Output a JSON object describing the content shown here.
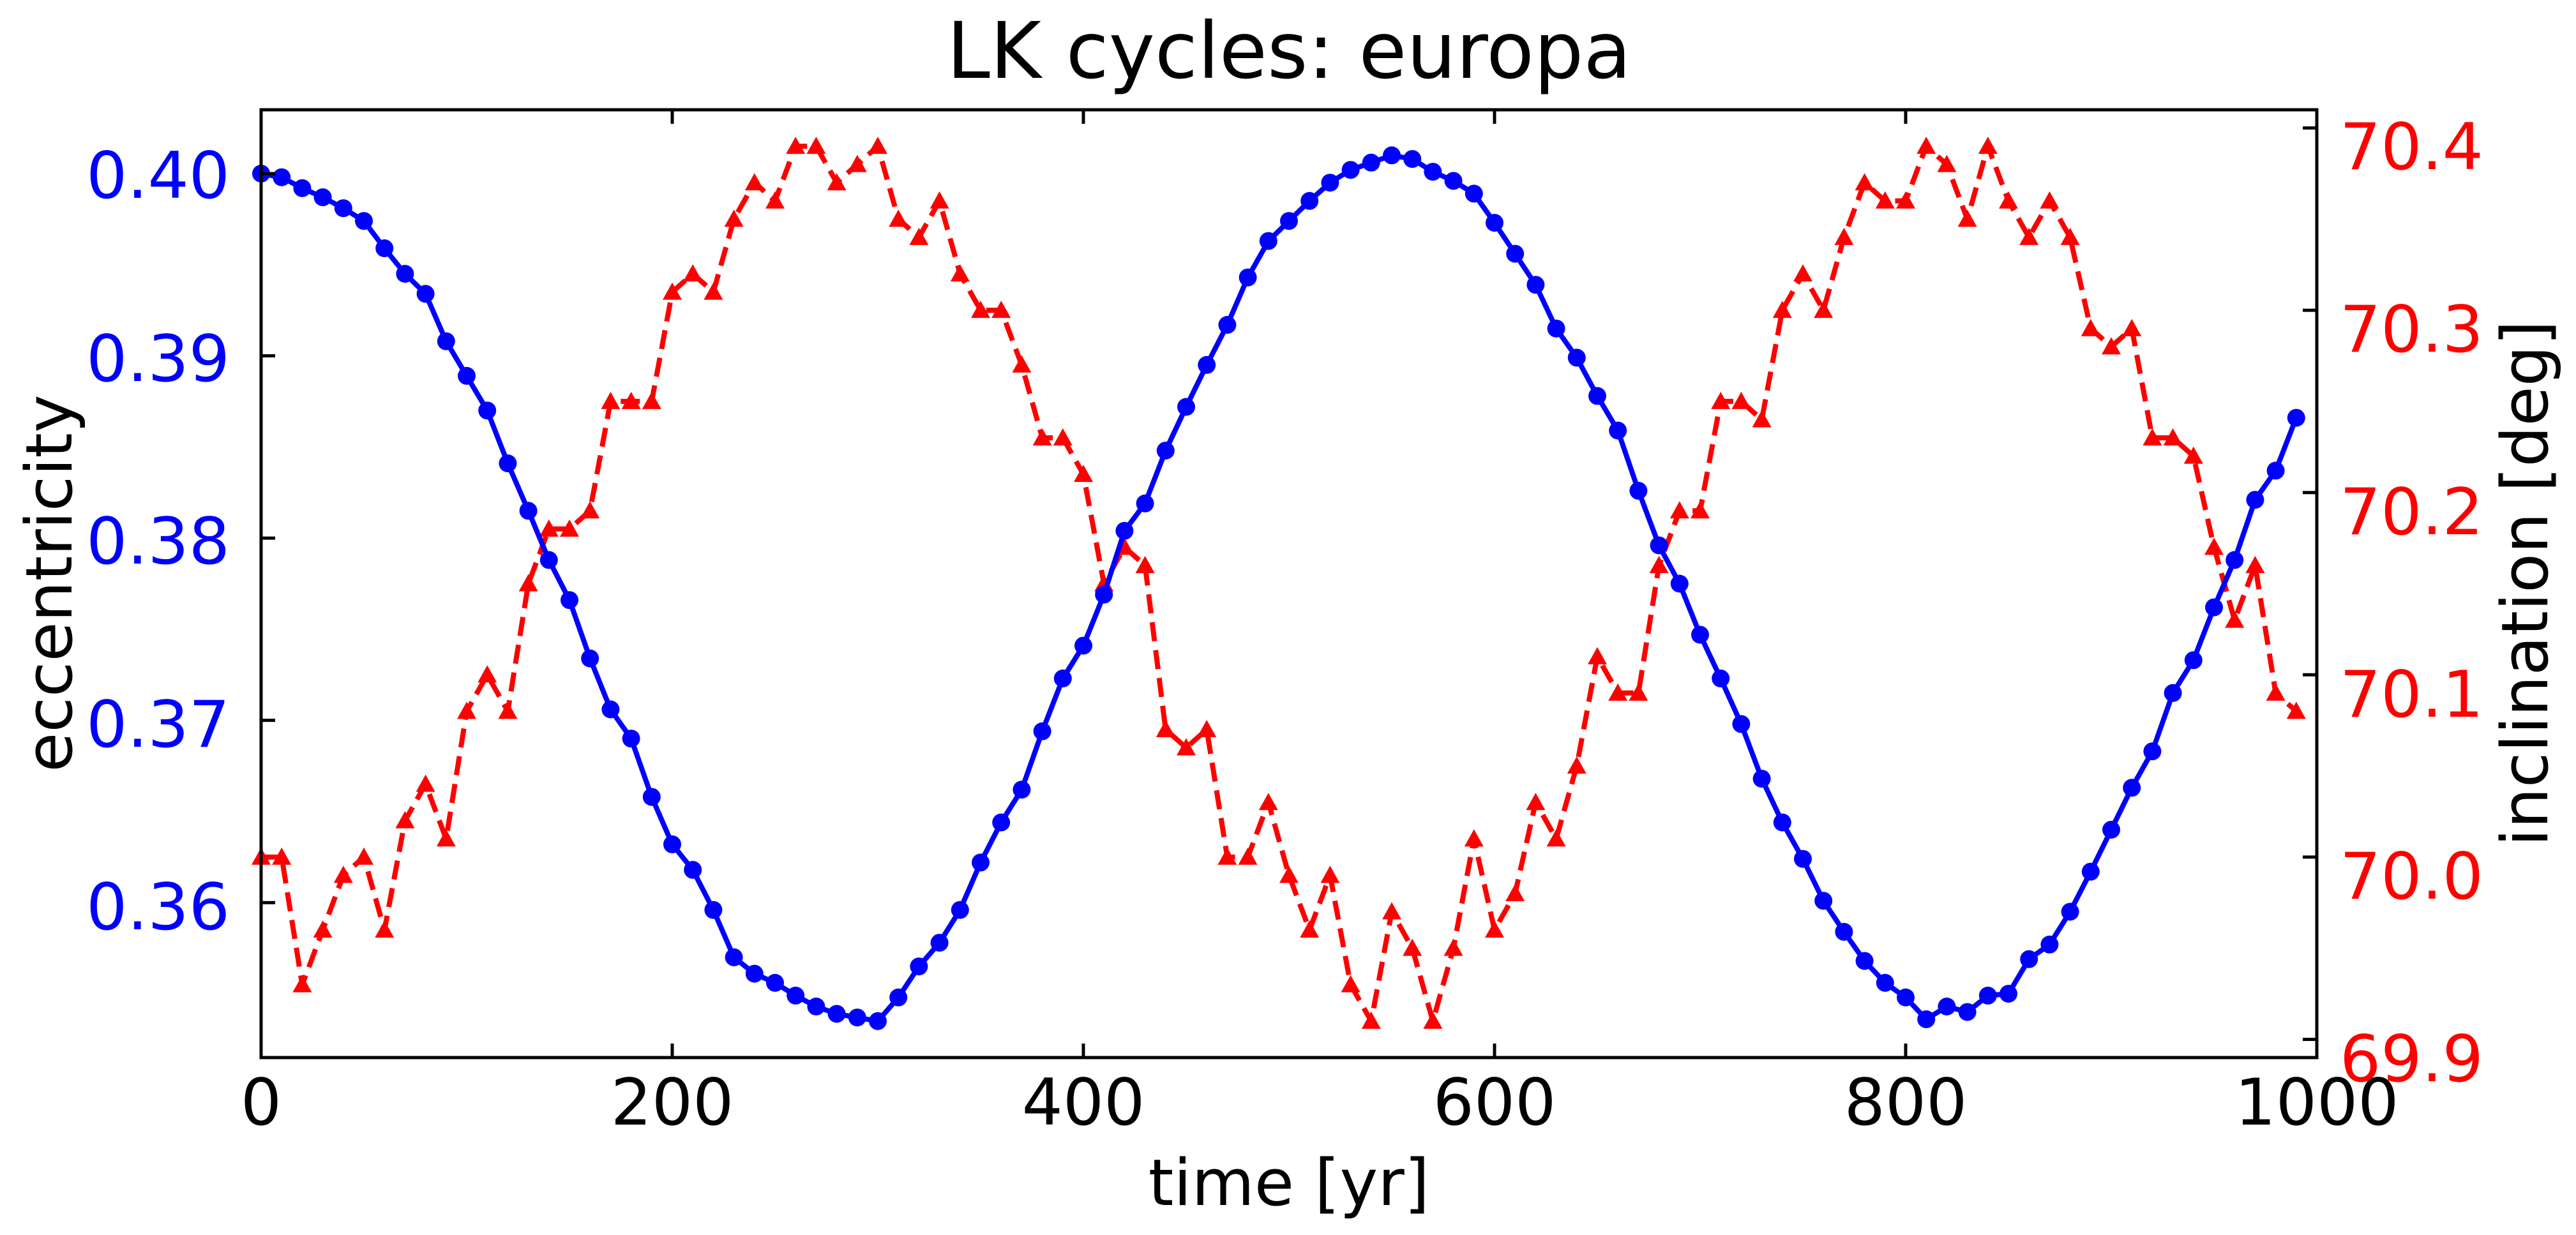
{
  "chart_data": {
    "type": "line",
    "title": "LK cycles: europa",
    "xlabel": "time [yr]",
    "ylabel_left": "eccentricity",
    "ylabel_right": "inclination [deg]",
    "xlim": [
      0,
      1000
    ],
    "ylim_left": [
      0.3515,
      0.4035
    ],
    "ylim_right": [
      69.89,
      70.41
    ],
    "x_ticks": [
      "0",
      "200",
      "400",
      "600",
      "800",
      "1000"
    ],
    "y_left_ticks": [
      "0.36",
      "0.37",
      "0.38",
      "0.39",
      "0.40"
    ],
    "y_right_ticks": [
      "69.9",
      "70.0",
      "70.1",
      "70.2",
      "70.3",
      "70.4"
    ],
    "grid": false,
    "colors": {
      "left_axis": "#0000ff",
      "right_axis": "#ff0000",
      "frame": "#000000"
    },
    "x": [
      0,
      10,
      20,
      30,
      40,
      50,
      60,
      70,
      80,
      90,
      100,
      110,
      120,
      130,
      140,
      150,
      160,
      170,
      180,
      190,
      200,
      210,
      220,
      230,
      240,
      250,
      260,
      270,
      280,
      290,
      300,
      310,
      320,
      330,
      340,
      350,
      360,
      370,
      380,
      390,
      400,
      410,
      420,
      430,
      440,
      450,
      460,
      470,
      480,
      490,
      500,
      510,
      520,
      530,
      540,
      550,
      560,
      570,
      580,
      590,
      600,
      610,
      620,
      630,
      640,
      650,
      660,
      670,
      680,
      690,
      700,
      710,
      720,
      730,
      740,
      750,
      760,
      770,
      780,
      790,
      800,
      810,
      820,
      830,
      840,
      850,
      860,
      870,
      880,
      890,
      900,
      910,
      920,
      930,
      940,
      950,
      960,
      970,
      980,
      990
    ],
    "series": [
      {
        "axis": "left",
        "color": "#0000ff",
        "marker": "circle",
        "line": "solid",
        "values": [
          0.4,
          0.3998,
          0.3992,
          0.3987,
          0.3981,
          0.3974,
          0.3959,
          0.3945,
          0.3934,
          0.3908,
          0.3889,
          0.387,
          0.3841,
          0.3815,
          0.3788,
          0.3766,
          0.3734,
          0.3706,
          0.369,
          0.3658,
          0.3632,
          0.3618,
          0.3596,
          0.357,
          0.3561,
          0.3556,
          0.3549,
          0.3543,
          0.3539,
          0.3537,
          0.3535,
          0.3548,
          0.3565,
          0.3578,
          0.3596,
          0.3622,
          0.3644,
          0.3662,
          0.3694,
          0.3723,
          0.3741,
          0.3769,
          0.3804,
          0.3819,
          0.3848,
          0.3872,
          0.3895,
          0.3917,
          0.3943,
          0.3963,
          0.3974,
          0.3985,
          0.3995,
          0.4002,
          0.4006,
          0.401,
          0.4008,
          0.4001,
          0.3996,
          0.3989,
          0.3973,
          0.3956,
          0.3939,
          0.3915,
          0.3899,
          0.3878,
          0.3859,
          0.3826,
          0.3796,
          0.3775,
          0.3747,
          0.3723,
          0.3698,
          0.3668,
          0.3644,
          0.3624,
          0.3601,
          0.3584,
          0.3568,
          0.3556,
          0.3548,
          0.3536,
          0.3543,
          0.354,
          0.3549,
          0.355,
          0.3569,
          0.3577,
          0.3595,
          0.3617,
          0.364,
          0.3663,
          0.3683,
          0.3715,
          0.3733,
          0.3762,
          0.3788,
          0.3821,
          0.3837,
          0.3866
        ]
      },
      {
        "axis": "right",
        "color": "#ff0000",
        "marker": "triangle-up",
        "line": "dashed",
        "values": [
          70.0,
          70.0,
          69.93,
          69.96,
          69.99,
          70.0,
          69.96,
          70.02,
          70.04,
          70.01,
          70.08,
          70.1,
          70.08,
          70.15,
          70.18,
          70.18,
          70.19,
          70.25,
          70.25,
          70.25,
          70.31,
          70.32,
          70.31,
          70.35,
          70.37,
          70.36,
          70.39,
          70.39,
          70.37,
          70.38,
          70.39,
          70.35,
          70.34,
          70.36,
          70.32,
          70.3,
          70.3,
          70.27,
          70.23,
          70.23,
          70.21,
          70.15,
          70.17,
          70.16,
          70.07,
          70.06,
          70.07,
          70.0,
          70.0,
          70.03,
          69.99,
          69.96,
          69.99,
          69.93,
          69.91,
          69.97,
          69.95,
          69.91,
          69.95,
          70.01,
          69.96,
          69.98,
          70.03,
          70.01,
          70.05,
          70.11,
          70.09,
          70.09,
          70.16,
          70.19,
          70.19,
          70.25,
          70.25,
          70.24,
          70.3,
          70.32,
          70.3,
          70.34,
          70.37,
          70.36,
          70.36,
          70.39,
          70.38,
          70.35,
          70.39,
          70.36,
          70.34,
          70.36,
          70.34,
          70.29,
          70.28,
          70.29,
          70.23,
          70.23,
          70.22,
          70.17,
          70.13,
          70.16,
          70.09,
          70.08
        ]
      }
    ]
  }
}
